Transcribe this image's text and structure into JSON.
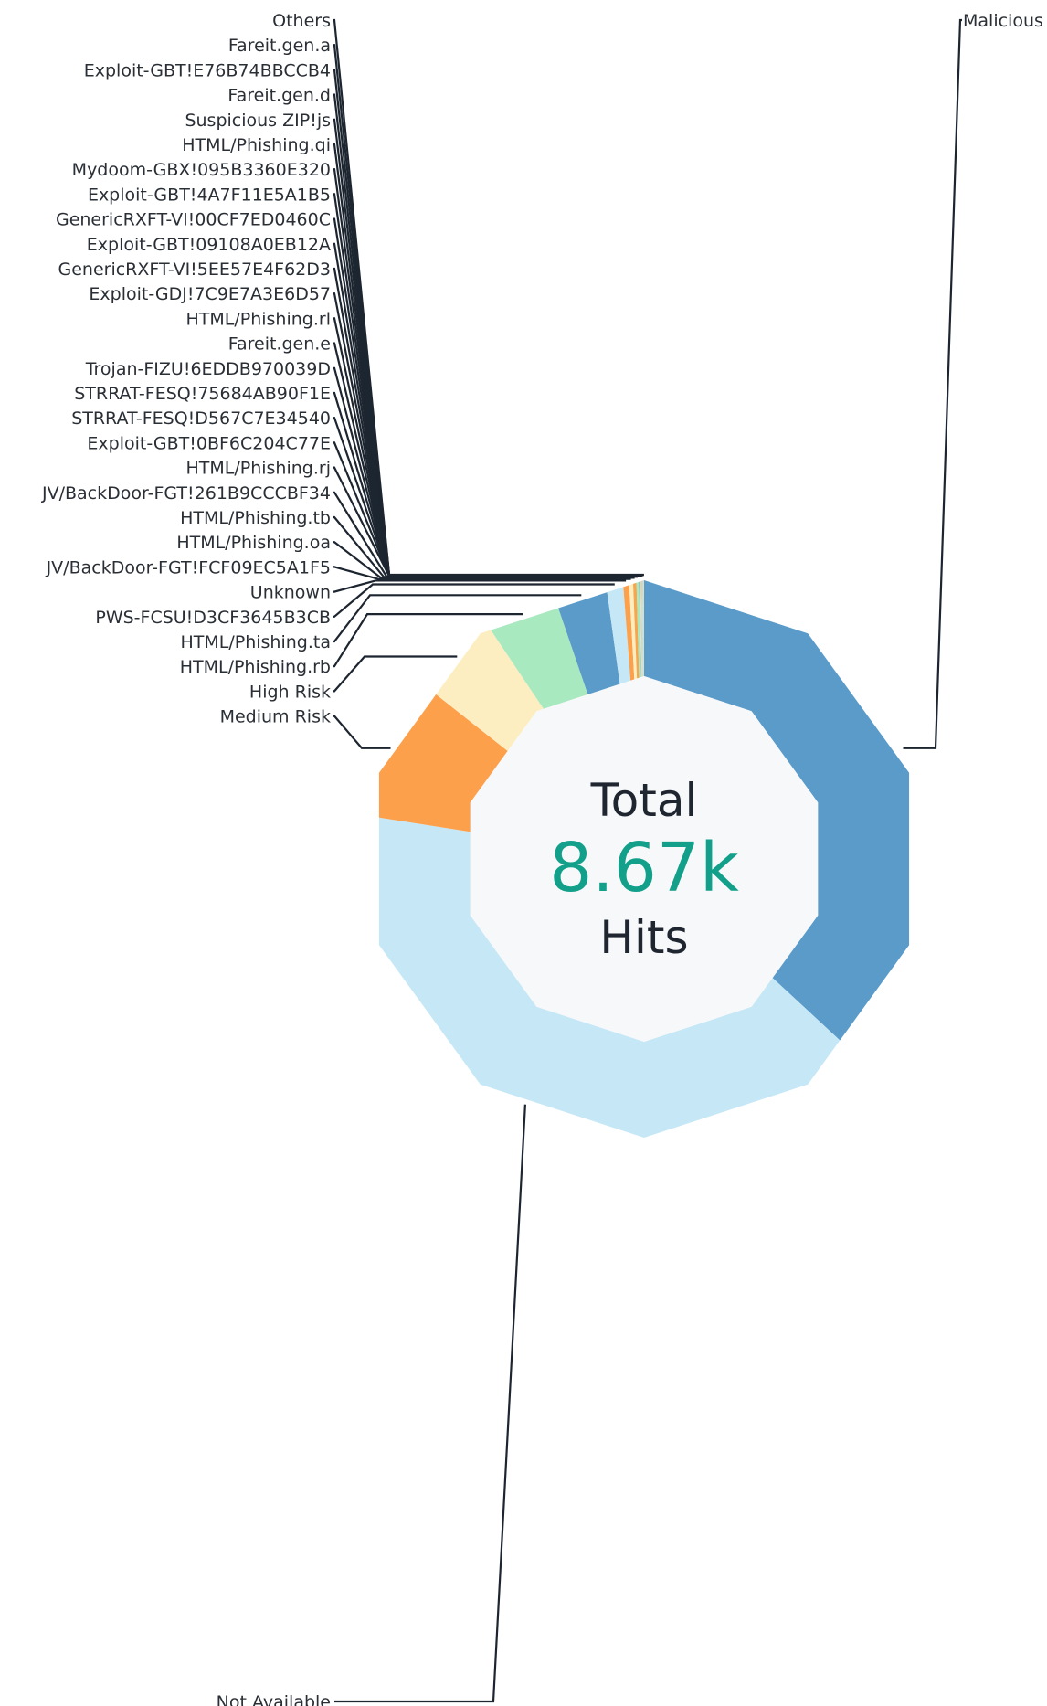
{
  "chart_data": {
    "type": "pie",
    "style": "donut (decagon-shaped)",
    "center": {
      "title": "Total",
      "value": "8.67k",
      "unit": "Hits",
      "value_color": "#13a08a"
    },
    "slices": [
      {
        "label": "Malicious",
        "value": 3200,
        "color": "#5b9bc9"
      },
      {
        "label": "Not Available",
        "value": 3520,
        "color": "#c6e8f6"
      },
      {
        "label": "Medium Risk",
        "value": 710,
        "color": "#fda04c"
      },
      {
        "label": "High Risk",
        "value": 430,
        "color": "#fdeec2"
      },
      {
        "label": "HTML/Phishing.rb",
        "value": 360,
        "color": "#a9e9c0"
      },
      {
        "label": "HTML/Phishing.ta",
        "value": 265,
        "color": "#5b9bc9"
      },
      {
        "label": "PWS-FCSU!D3CF3645B3CB",
        "value": 85,
        "color": "#c6e8f6"
      },
      {
        "label": "Unknown",
        "value": 30,
        "color": "#fda04c"
      },
      {
        "label": "JV/BackDoor-FGT!FCF09EC5A1F5",
        "value": 20,
        "color": "#fdeec2"
      },
      {
        "label": "HTML/Phishing.oa",
        "value": 17,
        "color": "#f7a64d"
      },
      {
        "label": "HTML/Phishing.tb",
        "value": 13,
        "color": "#a9e9c0"
      },
      {
        "label": "JV/BackDoor-FGT!261B9CCCBF34",
        "value": 2,
        "color": "#5b9bc9"
      },
      {
        "label": "HTML/Phishing.rj",
        "value": 2,
        "color": "#c6e8f6"
      },
      {
        "label": "Exploit-GBT!0BF6C204C77E",
        "value": 2,
        "color": "#fda04c"
      },
      {
        "label": "STRRAT-FESQ!D567C7E34540",
        "value": 2,
        "color": "#fdeec2"
      },
      {
        "label": "STRRAT-FESQ!75684AB90F1E",
        "value": 2,
        "color": "#a9e9c0"
      },
      {
        "label": "Trojan-FIZU!6EDDB970039D",
        "value": 1,
        "color": "#5b9bc9"
      },
      {
        "label": "Fareit.gen.e",
        "value": 1,
        "color": "#c6e8f6"
      },
      {
        "label": "HTML/Phishing.rl",
        "value": 1,
        "color": "#fda04c"
      },
      {
        "label": "Exploit-GDJ!7C9E7A3E6D57",
        "value": 1,
        "color": "#fdeec2"
      },
      {
        "label": "GenericRXFT-VI!5EE57E4F62D3",
        "value": 1,
        "color": "#a9e9c0"
      },
      {
        "label": "Exploit-GBT!09108A0EB12A",
        "value": 1,
        "color": "#5b9bc9"
      },
      {
        "label": "GenericRXFT-VI!00CF7ED0460C",
        "value": 1,
        "color": "#c6e8f6"
      },
      {
        "label": "Exploit-GBT!4A7F11E5A1B5",
        "value": 1,
        "color": "#fda04c"
      },
      {
        "label": "Mydoom-GBX!095B3360E320",
        "value": 1,
        "color": "#fdeec2"
      },
      {
        "label": "HTML/Phishing.qi",
        "value": 1,
        "color": "#a9e9c0"
      },
      {
        "label": "Suspicious ZIP!js",
        "value": 1,
        "color": "#5b9bc9"
      },
      {
        "label": "Fareit.gen.d",
        "value": 1,
        "color": "#c6e8f6"
      },
      {
        "label": "Exploit-GBT!E76B74BBCCB4",
        "value": 1,
        "color": "#fda04c"
      },
      {
        "label": "Fareit.gen.a",
        "value": 1,
        "color": "#fdeec2"
      },
      {
        "label": "Others",
        "value": 1,
        "color": "#a9e9c0"
      }
    ],
    "legend": "none (leader-line labels)"
  }
}
